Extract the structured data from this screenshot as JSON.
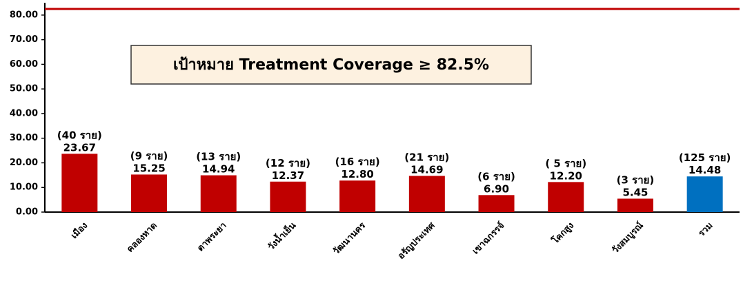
{
  "chart_data": {
    "type": "bar",
    "categories": [
      "เมือง",
      "คลองหาด",
      "ตาพระยา",
      "วังน้ำเย็น",
      "วัฒนานคร",
      "อรัญประเทศ",
      "เขาฉกรรจ์",
      "โคกสูง",
      "วังสมบูรณ์",
      "รวม"
    ],
    "values": [
      23.67,
      15.25,
      14.94,
      12.37,
      12.8,
      14.69,
      6.9,
      12.2,
      5.45,
      14.48
    ],
    "value_labels": [
      "23.67",
      "15.25",
      "14.94",
      "12.37",
      "12.80",
      "14.69",
      "6.90",
      "12.20",
      "5.45",
      "14.48"
    ],
    "case_labels": [
      "(40 ราย)",
      "(9 ราย)",
      "(13 ราย)",
      "(12 ราย)",
      "(16 ราย)",
      "(21 ราย)",
      "(6 ราย)",
      "( 5 ราย)",
      "(3 ราย)",
      "(125 ราย)"
    ],
    "colors": [
      "#c00000",
      "#c00000",
      "#c00000",
      "#c00000",
      "#c00000",
      "#c00000",
      "#c00000",
      "#c00000",
      "#c00000",
      "#0070c0"
    ],
    "ylim": [
      0,
      85
    ],
    "yticks": [
      {
        "value": 0,
        "label": "0.00"
      },
      {
        "value": 10,
        "label": "10.00"
      },
      {
        "value": 20,
        "label": "20.00"
      },
      {
        "value": 30,
        "label": "30.00"
      },
      {
        "value": 40,
        "label": "40.00"
      },
      {
        "value": 50,
        "label": "50.00"
      },
      {
        "value": 60,
        "label": "60.00"
      },
      {
        "value": 70,
        "label": "70.00"
      },
      {
        "value": 80,
        "label": "80.00"
      }
    ],
    "target": 82.5,
    "target_color": "#c00000",
    "annotation": "เป้าหมาย Treatment Coverage ≥ 82.5%"
  }
}
